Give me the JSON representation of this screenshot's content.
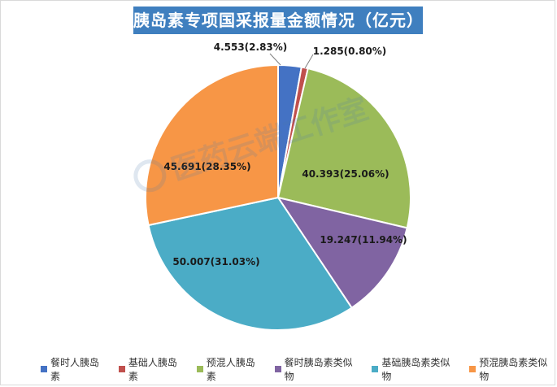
{
  "chart_data": {
    "type": "pie",
    "title": "胰岛素专项国采报量金额情况（亿元）",
    "unit": "亿元",
    "start_angle_deg": 0,
    "direction": "clockwise",
    "slices": [
      {
        "name": "餐时人胰岛素",
        "value": 4.553,
        "percent": "2.83%",
        "label": "4.553(2.83%)",
        "color": "#4472c4"
      },
      {
        "name": "基础人胰岛素",
        "value": 1.285,
        "percent": "0.80%",
        "label": "1.285(0.80%)",
        "color": "#c0504d"
      },
      {
        "name": "预混人胰岛素",
        "value": 40.393,
        "percent": "25.06%",
        "label": "40.393(25.06%)",
        "color": "#9bbb59"
      },
      {
        "name": "餐时胰岛素类似物",
        "value": 19.247,
        "percent": "11.94%",
        "label": "19.247(11.94%)",
        "color": "#8064a2"
      },
      {
        "name": "基础胰岛素类似物",
        "value": 50.007,
        "percent": "31.03%",
        "label": "50.007(31.03%)",
        "color": "#4bacc6"
      },
      {
        "name": "预混胰岛素类似物",
        "value": 45.691,
        "percent": "28.35%",
        "label": "45.691(28.35%)",
        "color": "#f79646"
      }
    ],
    "legend_position": "bottom"
  },
  "watermark": {
    "text": "医药云端工作室"
  }
}
